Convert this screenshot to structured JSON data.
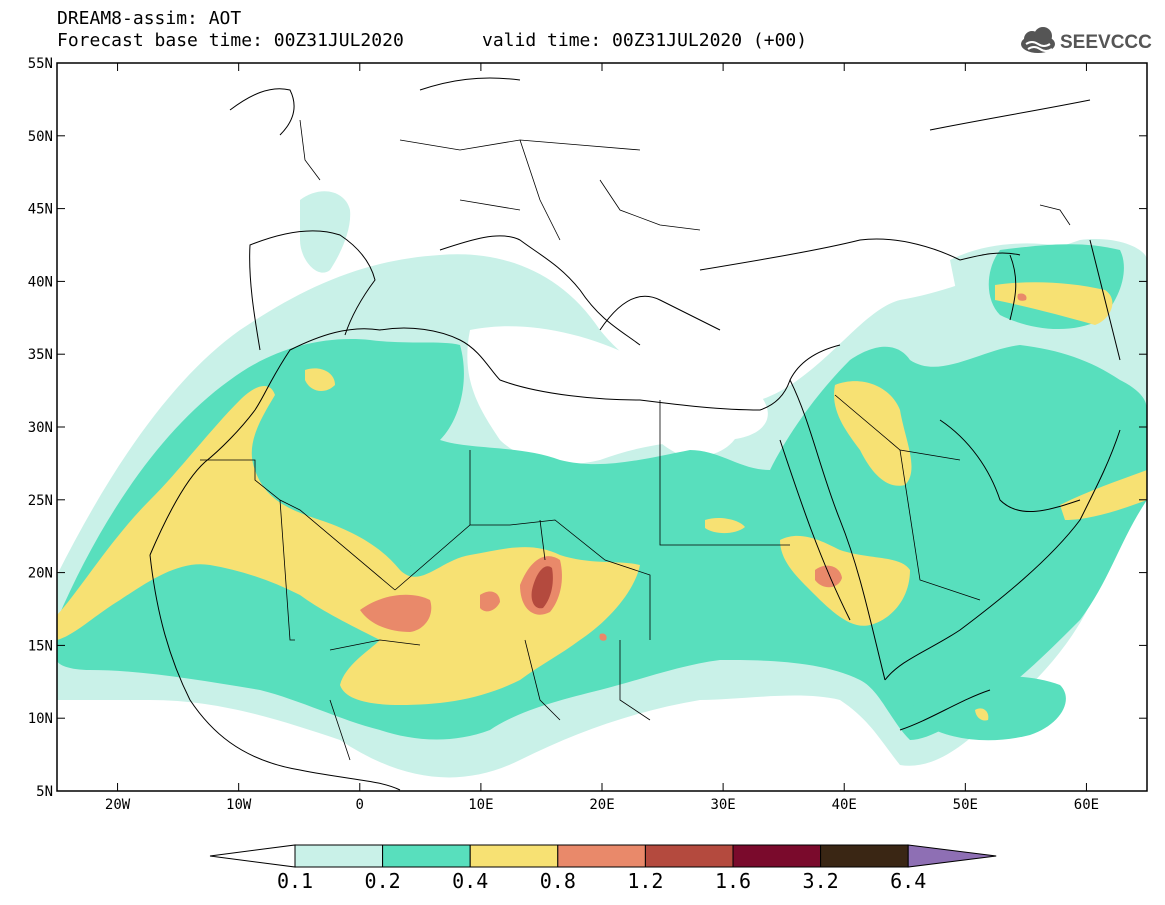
{
  "header": {
    "title_line1": "DREAM8-assim: AOT",
    "title_line2": "Forecast base time: 00Z31JUL2020",
    "valid_time": "valid time: 00Z31JUL2020 (+00)"
  },
  "logo": {
    "text": "SEEVCCC",
    "icon": "cloud-icon"
  },
  "map": {
    "variable": "AOT",
    "lon_range": [
      -25,
      65
    ],
    "lat_range": [
      5,
      55
    ],
    "lat_labels": [
      "55N",
      "50N",
      "45N",
      "40N",
      "35N",
      "30N",
      "25N",
      "20N",
      "15N",
      "10N",
      "5N"
    ],
    "lon_labels": [
      "20W",
      "10W",
      "0",
      "10E",
      "20E",
      "30E",
      "40E",
      "50E",
      "60E"
    ],
    "lat_values": [
      55,
      50,
      45,
      40,
      35,
      30,
      25,
      20,
      15,
      10,
      5
    ],
    "lon_values": [
      -20,
      -10,
      0,
      10,
      20,
      30,
      40,
      50,
      60
    ]
  },
  "colorbar": {
    "labels": [
      "0.1",
      "0.2",
      "0.4",
      "0.8",
      "1.2",
      "1.6",
      "3.2",
      "6.4"
    ],
    "colors": [
      "#ffffff",
      "#c9f1e8",
      "#58dfbd",
      "#f7e173",
      "#e9896a",
      "#b44a3e",
      "#7a0a2c",
      "#3a2614",
      "#8e6fb4"
    ]
  }
}
